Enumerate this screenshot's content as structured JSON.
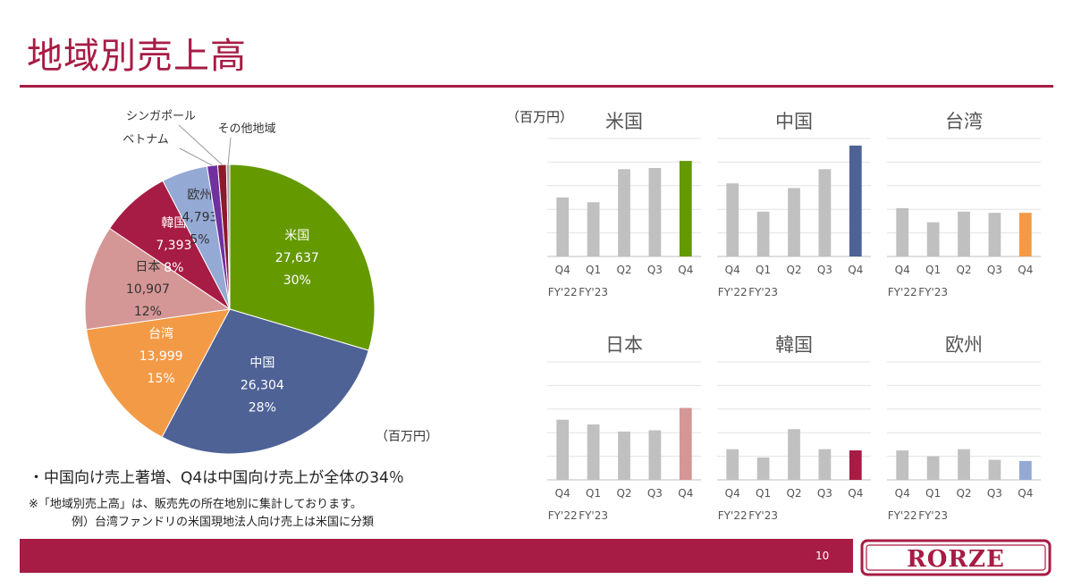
{
  "header": {
    "title": "地域別売上高"
  },
  "notes": {
    "bullet": "・中国向け売上著増、Q4は中国向け売上が全体の34％",
    "note1": "※「地域別売上高」は、販売先の所在地別に集計しております。",
    "note2": "例）台湾ファンドリの米国現地法人向け売上は米国に分類"
  },
  "footer": {
    "page_number": "10",
    "logo_text": "RORZE"
  },
  "colors": {
    "accent": "#a71c44",
    "gray_bar": "#c0c0c0"
  },
  "chart_data": [
    {
      "type": "pie",
      "unit_label": "（百万円）",
      "slices": [
        {
          "name": "米国",
          "value": 27637,
          "value_label": "27,637",
          "percent_label": "30%",
          "color": "#659900"
        },
        {
          "name": "中国",
          "value": 26304,
          "value_label": "26,304",
          "percent_label": "28%",
          "color": "#4e6296"
        },
        {
          "name": "台湾",
          "value": 13999,
          "value_label": "13,999",
          "percent_label": "15%",
          "color": "#f39a47"
        },
        {
          "name": "日本",
          "value": 10907,
          "value_label": "10,907",
          "percent_label": "12%",
          "color": "#d59696"
        },
        {
          "name": "韓国",
          "value": 7393,
          "value_label": "7,393",
          "percent_label": "8%",
          "color": "#a71c44"
        },
        {
          "name": "欧州",
          "value": 4793,
          "value_label": "4,793",
          "percent_label": "5%",
          "color": "#94a9d4"
        },
        {
          "name": "ベトナム",
          "value": 1100,
          "value_label": "",
          "percent_label": "",
          "color": "#7030a0"
        },
        {
          "name": "シンガポール",
          "value": 900,
          "value_label": "",
          "percent_label": "",
          "color": "#8b1a2b"
        },
        {
          "name": "その他地域",
          "value": 350,
          "value_label": "",
          "percent_label": "",
          "color": "#a5a5a5"
        }
      ]
    },
    {
      "type": "bar",
      "unit_label": "（百万円）",
      "categories": [
        "Q4",
        "Q1",
        "Q2",
        "Q3",
        "Q4"
      ],
      "fy_labels": [
        "FY'22",
        "FY'23"
      ],
      "charts": [
        {
          "title": "米国",
          "values": [
            25,
            23,
            37,
            37.5,
            40.5
          ],
          "highlight": "#659900"
        },
        {
          "title": "中国",
          "values": [
            31,
            19,
            29,
            37,
            47
          ],
          "highlight": "#4e6296"
        },
        {
          "title": "台湾",
          "values": [
            20.5,
            14.5,
            19,
            18.5,
            18.5
          ],
          "highlight": "#f39a47"
        },
        {
          "title": "日本",
          "values": [
            25.5,
            23.5,
            20.5,
            21,
            30.5
          ],
          "highlight": "#d59696"
        },
        {
          "title": "韓国",
          "values": [
            13,
            9.5,
            21.5,
            13,
            12.5
          ],
          "highlight": "#a71c44"
        },
        {
          "title": "欧州",
          "values": [
            12.5,
            10,
            13,
            8.5,
            8
          ],
          "highlight": "#94a9d4"
        }
      ]
    }
  ]
}
